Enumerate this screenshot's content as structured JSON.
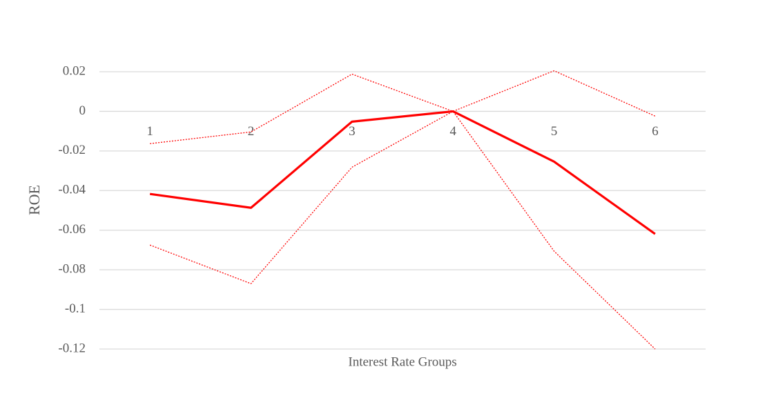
{
  "chart_data": {
    "type": "line",
    "x_label": "Interest Rate Groups",
    "y_label": "ROE",
    "categories": [
      "1",
      "2",
      "3",
      "4",
      "5",
      "6"
    ],
    "series": [
      {
        "color": "#ff0000",
        "style": "solid",
        "values": [
          -0.0417,
          -0.0487,
          -0.0052,
          0,
          -0.0254,
          -0.0619
        ]
      },
      {
        "color": "#ff0000",
        "style": "dotted",
        "values": [
          -0.0163,
          -0.0104,
          0.0188,
          0,
          0.0205,
          -0.0024
        ]
      },
      {
        "color": "#ff0000",
        "style": "dotted",
        "values": [
          -0.0675,
          -0.087,
          -0.0282,
          0,
          -0.0706,
          -0.12
        ]
      }
    ],
    "ylim": [
      -0.12,
      0.02
    ],
    "yticks": [
      0.02,
      0,
      -0.02,
      -0.04,
      -0.06,
      -0.08,
      -0.1,
      -0.12
    ],
    "grid": true
  }
}
